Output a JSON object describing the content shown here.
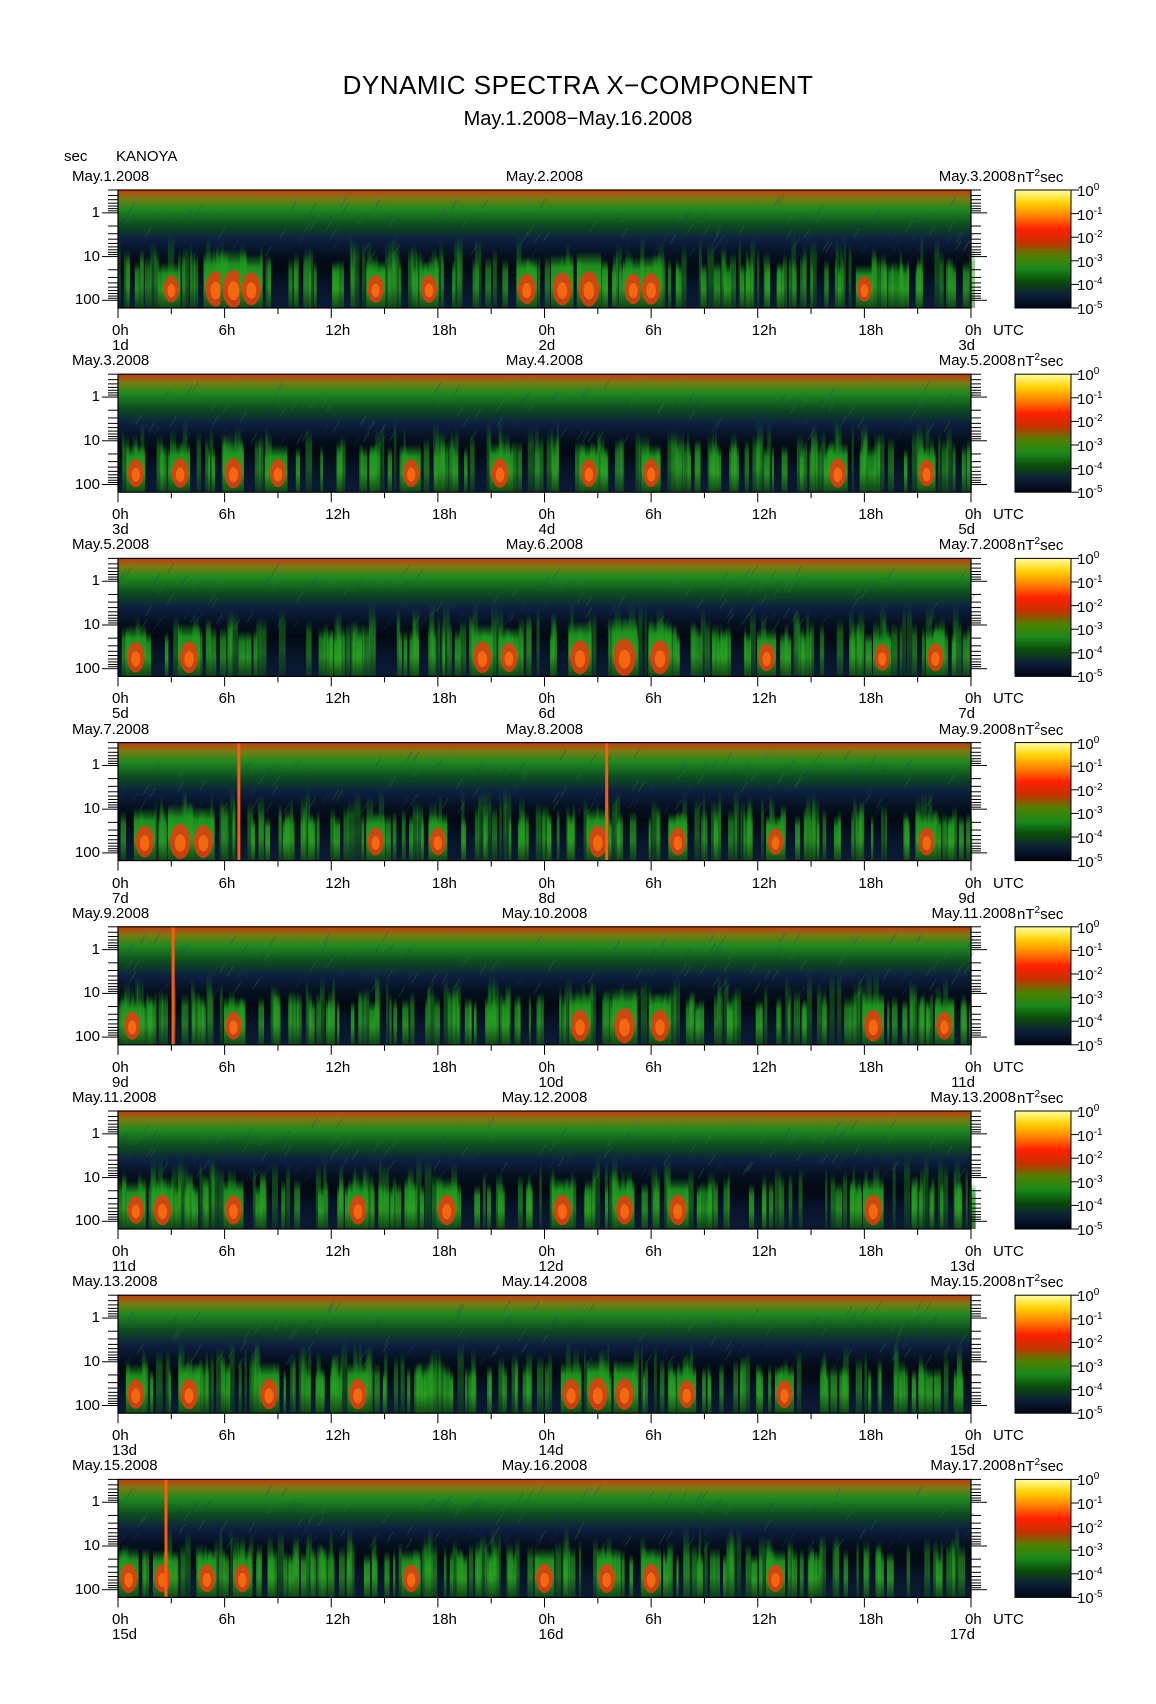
{
  "header": {
    "title": "DYNAMIC SPECTRA X−COMPONENT",
    "subtitle": "May.1.2008−May.16.2008",
    "y_unit": "sec",
    "station": "KANOYA"
  },
  "colorbar": {
    "unit": "nT",
    "unit_sup": "2",
    "unit_suffix": "sec",
    "tick_base": "10",
    "tick_exponents": [
      "0",
      "-1",
      "-2",
      "-3",
      "-4",
      "-5"
    ],
    "stops": [
      "#ffffa0",
      "#ffd000",
      "#ff8000",
      "#ff2000",
      "#c83000",
      "#508000",
      "#1a8a1a",
      "#0a4a0a",
      "#0d1f3a",
      "#000510"
    ]
  },
  "time_axis": {
    "tick_labels": [
      "0h",
      "6h",
      "12h",
      "18h",
      "0h",
      "6h",
      "12h",
      "18h",
      "0h"
    ],
    "suffix": "UTC"
  },
  "chart_data": {
    "type": "heatmap",
    "description_values": "Dynamic spectra of geomagnetic X-component, two days per panel, period axis in seconds (log scale), power spectral density in nT^2 sec (log scale 1e-5 to 1e0).",
    "yticks": [
      "1",
      "10",
      "100"
    ],
    "yscale": "log",
    "ylim": [
      0.3,
      150
    ],
    "xlim_hours": [
      0,
      48
    ],
    "zlim": [
      1e-05,
      1
    ],
    "panels": [
      {
        "left_date": "May.1.2008",
        "mid_date": "May.2.2008",
        "right_date": "May.3.2008",
        "day_labels": [
          "1d",
          "2d",
          "3d"
        ],
        "bursts": [
          [
            3,
            0.9
          ],
          [
            5.5,
            1.6
          ],
          [
            6.5,
            1.8
          ],
          [
            7.5,
            1.4
          ],
          [
            14.5,
            1.0
          ],
          [
            17.5,
            1.0
          ],
          [
            23,
            1.2
          ],
          [
            25,
            1.4
          ],
          [
            26.5,
            1.6
          ],
          [
            29,
            1.2
          ],
          [
            30,
            1.3
          ],
          [
            42,
            0.8
          ]
        ]
      },
      {
        "left_date": "May.3.2008",
        "mid_date": "May.4.2008",
        "right_date": "May.5.2008",
        "day_labels": [
          "3d",
          "4d",
          "5d"
        ],
        "bursts": [
          [
            1,
            1.0
          ],
          [
            3.5,
            1.1
          ],
          [
            6.5,
            1.2
          ],
          [
            9,
            1.0
          ],
          [
            16.5,
            1.0
          ],
          [
            21.5,
            1.1
          ],
          [
            26.5,
            1.0
          ],
          [
            30,
            1.0
          ],
          [
            40.5,
            1.1
          ],
          [
            45.5,
            0.9
          ]
        ]
      },
      {
        "left_date": "May.5.2008",
        "mid_date": "May.6.2008",
        "right_date": "May.7.2008",
        "day_labels": [
          "5d",
          "6d",
          "7d"
        ],
        "bursts": [
          [
            1,
            1.2
          ],
          [
            4,
            1.3
          ],
          [
            20.5,
            1.3
          ],
          [
            22,
            1.1
          ],
          [
            26,
            1.5
          ],
          [
            28.5,
            1.8
          ],
          [
            30.5,
            1.5
          ],
          [
            36.5,
            1.0
          ],
          [
            43,
            0.9
          ],
          [
            46,
            1.0
          ]
        ]
      },
      {
        "left_date": "May.7.2008",
        "mid_date": "May.8.2008",
        "right_date": "May.9.2008",
        "day_labels": [
          "7d",
          "8d",
          "9d"
        ],
        "bursts": [
          [
            1.5,
            1.3
          ],
          [
            3.5,
            1.6
          ],
          [
            4.8,
            1.4
          ],
          [
            14.5,
            1.0
          ],
          [
            18,
            1.0
          ],
          [
            27,
            1.3
          ],
          [
            31.5,
            1.0
          ],
          [
            37,
            0.9
          ],
          [
            45.5,
            1.0
          ]
        ],
        "spikes": [
          6.8,
          27.5
        ]
      },
      {
        "left_date": "May.9.2008",
        "mid_date": "May.10.2008",
        "right_date": "May.11.2008",
        "day_labels": [
          "9d",
          "10d",
          "11d"
        ],
        "bursts": [
          [
            0.8,
            1.0
          ],
          [
            6.5,
            1.0
          ],
          [
            26,
            1.3
          ],
          [
            28.5,
            1.6
          ],
          [
            30.5,
            1.3
          ],
          [
            42.5,
            1.3
          ],
          [
            46.5,
            1.0
          ]
        ],
        "spikes": [
          3.1
        ]
      },
      {
        "left_date": "May.11.2008",
        "mid_date": "May.12.2008",
        "right_date": "May.13.2008",
        "day_labels": [
          "11d",
          "12d",
          "13d"
        ],
        "bursts": [
          [
            1,
            1.0
          ],
          [
            2.5,
            1.2
          ],
          [
            6.5,
            1.1
          ],
          [
            13.5,
            1.1
          ],
          [
            18.5,
            1.2
          ],
          [
            25,
            1.2
          ],
          [
            28.5,
            1.1
          ],
          [
            31.5,
            1.2
          ],
          [
            42.5,
            1.2
          ]
        ]
      },
      {
        "left_date": "May.13.2008",
        "mid_date": "May.14.2008",
        "right_date": "May.15.2008",
        "day_labels": [
          "13d",
          "14d",
          "15d"
        ],
        "bursts": [
          [
            1,
            1.1
          ],
          [
            4,
            1.2
          ],
          [
            8.5,
            1.2
          ],
          [
            13.5,
            1.2
          ],
          [
            25.5,
            1.2
          ],
          [
            27,
            1.4
          ],
          [
            28.5,
            1.3
          ],
          [
            32,
            1.0
          ],
          [
            37.5,
            1.0
          ]
        ]
      },
      {
        "left_date": "May.15.2008",
        "mid_date": "May.16.2008",
        "right_date": "May.17.2008",
        "day_labels": [
          "15d",
          "16d",
          "17d"
        ],
        "bursts": [
          [
            0.6,
            1.1
          ],
          [
            2.5,
            1.0
          ],
          [
            5,
            1.0
          ],
          [
            7,
            1.0
          ],
          [
            16.5,
            1.0
          ],
          [
            24,
            1.1
          ],
          [
            27.5,
            1.1
          ],
          [
            30,
            1.1
          ],
          [
            37,
            1.0
          ]
        ],
        "spikes": [
          2.7
        ]
      }
    ]
  }
}
